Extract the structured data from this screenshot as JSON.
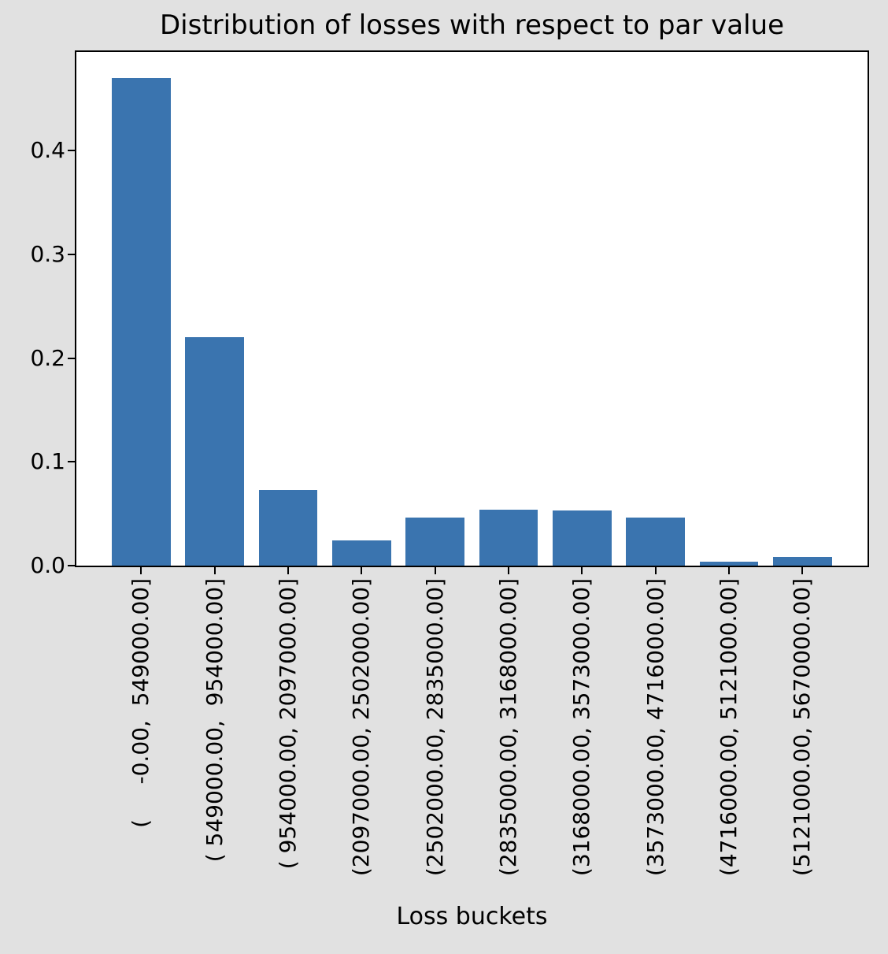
{
  "chart_data": {
    "type": "bar",
    "title": "Distribution of losses with respect to par value",
    "xlabel": "Loss buckets",
    "ylabel": "",
    "categories": [
      "(     -0.00,  549000.00]",
      "( 549000.00,  954000.00]",
      "( 954000.00, 2097000.00]",
      "(2097000.00, 2502000.00]",
      "(2502000.00, 2835000.00]",
      "(2835000.00, 3168000.00]",
      "(3168000.00, 3573000.00]",
      "(3573000.00, 4716000.00]",
      "(4716000.00, 5121000.00]",
      "(5121000.00, 5670000.00]"
    ],
    "values": [
      0.47,
      0.22,
      0.073,
      0.024,
      0.046,
      0.054,
      0.053,
      0.046,
      0.004,
      0.008
    ],
    "ytick_values": [
      0.0,
      0.1,
      0.2,
      0.3,
      0.4
    ],
    "ytick_labels": [
      "0.0",
      "0.1",
      "0.2",
      "0.3",
      "0.4"
    ],
    "ylim": [
      0,
      0.495
    ],
    "grid": false,
    "legend": "none",
    "bar_color": "#3a74af",
    "figure_bg": "#e1e1e1",
    "plot_bg": "#ffffff",
    "spine_color": "#000000"
  }
}
